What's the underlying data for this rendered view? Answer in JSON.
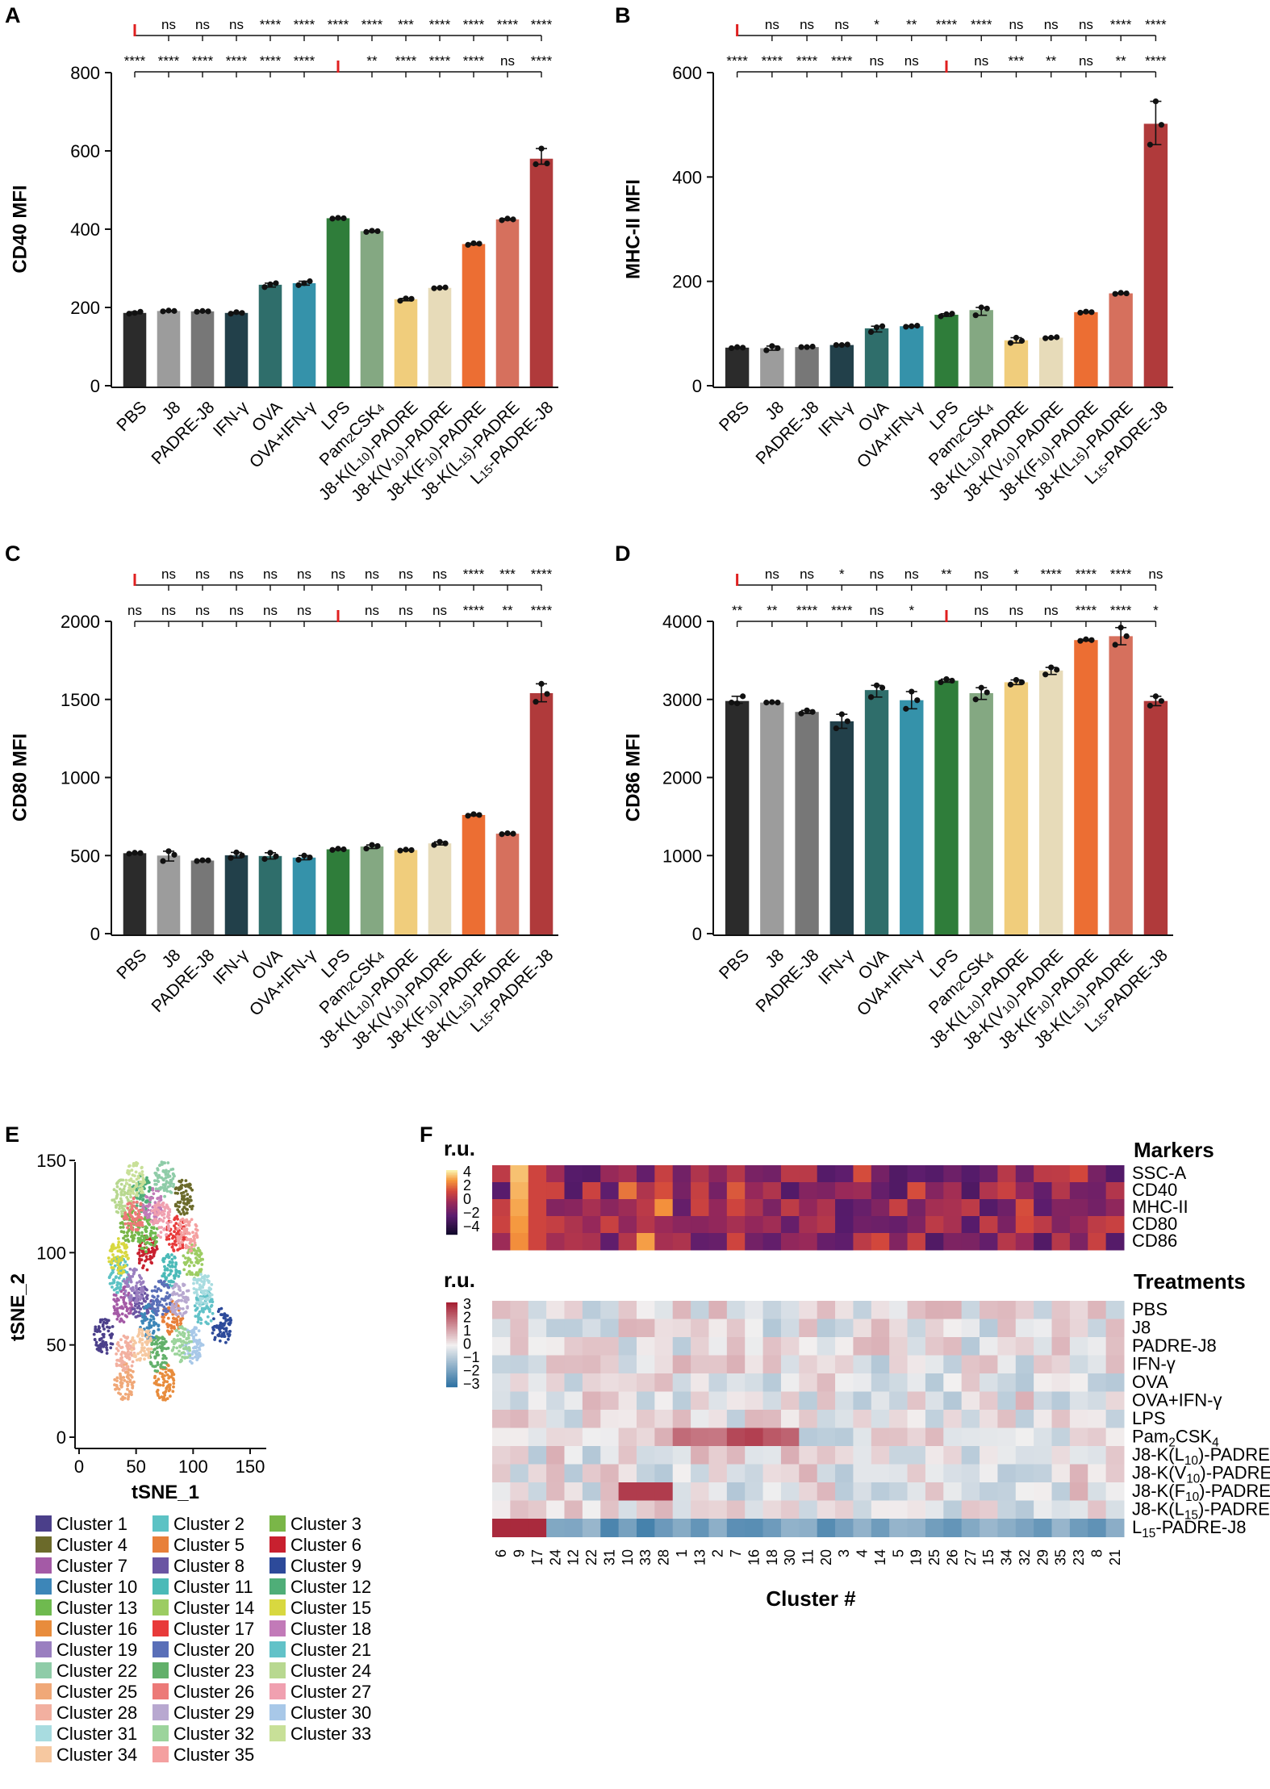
{
  "categories": [
    "PBS",
    "J8",
    "PADRE-J8",
    "IFN-γ",
    "OVA",
    "OVA+IFN-γ",
    "LPS",
    "Pam2CSK4",
    "J8-K(L10)-PADRE",
    "J8-K(V10)-PADRE",
    "J8-K(F10)-PADRE",
    "J8-K(L15)-PADRE",
    "L15-PADRE-J8"
  ],
  "bar_colors": [
    "#2b2b2b",
    "#9c9c9c",
    "#777777",
    "#22404a",
    "#2f6e6b",
    "#3592aa",
    "#2f7d3a",
    "#84a882",
    "#f0cd7c",
    "#e7dbb9",
    "#ec6e33",
    "#d6705d",
    "#b03a3b"
  ],
  "chart_data": [
    {
      "type": "bar",
      "panel": "A",
      "ylabel": "CD40 MFI",
      "ylim": [
        0,
        800
      ],
      "yticks": [
        0,
        200,
        400,
        600,
        800
      ],
      "values": [
        186,
        191,
        190,
        186,
        258,
        262,
        428,
        395,
        221,
        250,
        362,
        425,
        580
      ],
      "points": [
        [
          184,
          186,
          189
        ],
        [
          190,
          192,
          191
        ],
        [
          189,
          191,
          190
        ],
        [
          184,
          188,
          186
        ],
        [
          252,
          259,
          262
        ],
        [
          257,
          262,
          267
        ],
        [
          427,
          429,
          428
        ],
        [
          393,
          396,
          395
        ],
        [
          217,
          223,
          222
        ],
        [
          249,
          250,
          251
        ],
        [
          360,
          364,
          363
        ],
        [
          423,
          427,
          425
        ],
        [
          566,
          606,
          568
        ]
      ],
      "sig_row1": [
        "ref",
        "ns",
        "ns",
        "ns",
        "****",
        "****",
        "****",
        "****",
        "***",
        "****",
        "****",
        "****",
        "****"
      ],
      "sig_row2": [
        "****",
        "****",
        "****",
        "****",
        "****",
        "****",
        "ref",
        "**",
        "****",
        "****",
        "****",
        "ns",
        "****"
      ]
    },
    {
      "type": "bar",
      "panel": "B",
      "ylabel": "MHC-II MFI",
      "ylim": [
        0,
        600
      ],
      "yticks": [
        0,
        200,
        400,
        600
      ],
      "values": [
        73,
        72,
        74,
        78,
        110,
        114,
        136,
        145,
        87,
        92,
        141,
        177,
        502
      ],
      "points": [
        [
          72,
          74,
          73
        ],
        [
          68,
          76,
          72
        ],
        [
          74,
          74,
          75
        ],
        [
          78,
          78,
          79
        ],
        [
          103,
          112,
          114
        ],
        [
          113,
          114,
          115
        ],
        [
          133,
          137,
          138
        ],
        [
          135,
          150,
          148
        ],
        [
          82,
          92,
          86
        ],
        [
          91,
          92,
          93
        ],
        [
          140,
          142,
          141
        ],
        [
          176,
          178,
          177
        ],
        [
          462,
          545,
          500
        ]
      ],
      "sig_row1": [
        "ref",
        "ns",
        "ns",
        "ns",
        "*",
        "**",
        "****",
        "****",
        "ns",
        "ns",
        "ns",
        "****",
        "****"
      ],
      "sig_row2": [
        "****",
        "****",
        "****",
        "****",
        "ns",
        "ns",
        "ref",
        "ns",
        "***",
        "**",
        "ns",
        "**",
        "****"
      ]
    },
    {
      "type": "bar",
      "panel": "C",
      "ylabel": "CD80 MFI",
      "ylim": [
        0,
        2000
      ],
      "yticks": [
        0,
        500,
        1000,
        1500,
        2000
      ],
      "values": [
        515,
        500,
        468,
        502,
        497,
        487,
        540,
        558,
        535,
        578,
        760,
        640,
        1540
      ],
      "points": [
        [
          512,
          518,
          516
        ],
        [
          465,
          528,
          505
        ],
        [
          465,
          470,
          469
        ],
        [
          485,
          520,
          501
        ],
        [
          478,
          518,
          495
        ],
        [
          473,
          500,
          488
        ],
        [
          536,
          544,
          540
        ],
        [
          545,
          568,
          561
        ],
        [
          532,
          538,
          535
        ],
        [
          568,
          588,
          578
        ],
        [
          755,
          765,
          760
        ],
        [
          637,
          643,
          640
        ],
        [
          1485,
          1600,
          1535
        ]
      ],
      "sig_row1": [
        "ref",
        "ns",
        "ns",
        "ns",
        "ns",
        "ns",
        "ns",
        "ns",
        "ns",
        "ns",
        "****",
        "***",
        "****"
      ],
      "sig_row2": [
        "ns",
        "ns",
        "ns",
        "ns",
        "ns",
        "ns",
        "ref",
        "ns",
        "ns",
        "ns",
        "****",
        "**",
        "****"
      ]
    },
    {
      "type": "bar",
      "panel": "D",
      "ylabel": "CD86 MFI",
      "ylim": [
        0,
        4000
      ],
      "yticks": [
        0,
        1000,
        2000,
        3000,
        4000
      ],
      "values": [
        2980,
        2960,
        2840,
        2720,
        3120,
        2990,
        3240,
        3080,
        3220,
        3370,
        3760,
        3810,
        2980
      ],
      "points": [
        [
          2960,
          2950,
          3040
        ],
        [
          2960,
          2965,
          2960
        ],
        [
          2820,
          2860,
          2840
        ],
        [
          2630,
          2810,
          2720
        ],
        [
          3030,
          3180,
          3150
        ],
        [
          2880,
          3100,
          2990
        ],
        [
          3220,
          3260,
          3240
        ],
        [
          3000,
          3150,
          3090
        ],
        [
          3190,
          3250,
          3220
        ],
        [
          3320,
          3410,
          3380
        ],
        [
          3750,
          3770,
          3760
        ],
        [
          3700,
          3920,
          3810
        ],
        [
          2920,
          3040,
          2980
        ]
      ],
      "sig_row1": [
        "ref",
        "ns",
        "ns",
        "*",
        "ns",
        "ns",
        "**",
        "ns",
        "*",
        "****",
        "****",
        "****",
        "ns"
      ],
      "sig_row2": [
        "**",
        "**",
        "****",
        "****",
        "ns",
        "*",
        "ref",
        "ns",
        "ns",
        "ns",
        "****",
        "****",
        "*"
      ]
    }
  ],
  "panel_labels": [
    "A",
    "B",
    "C",
    "D",
    "E",
    "F"
  ],
  "tsne": {
    "xlabel": "tSNE_1",
    "ylabel": "tSNE_2",
    "xticks": [
      0,
      50,
      100,
      150
    ],
    "yticks": [
      0,
      50,
      100,
      150
    ],
    "clusters": [
      "Cluster 1",
      "Cluster 2",
      "Cluster 3",
      "Cluster 4",
      "Cluster 5",
      "Cluster 6",
      "Cluster 7",
      "Cluster 8",
      "Cluster 9",
      "Cluster 10",
      "Cluster 11",
      "Cluster 12",
      "Cluster 13",
      "Cluster 14",
      "Cluster 15",
      "Cluster 16",
      "Cluster 17",
      "Cluster 18",
      "Cluster 19",
      "Cluster 20",
      "Cluster 21",
      "Cluster 22",
      "Cluster 23",
      "Cluster 24",
      "Cluster 25",
      "Cluster 26",
      "Cluster 27",
      "Cluster 28",
      "Cluster 29",
      "Cluster 30",
      "Cluster 31",
      "Cluster 32",
      "Cluster 33",
      "Cluster 34",
      "Cluster 35"
    ],
    "cluster_colors": [
      "#4b3f8a",
      "#5cc2c4",
      "#7ab648",
      "#6b6a2a",
      "#e8803a",
      "#c8202f",
      "#a45aa6",
      "#6a55a3",
      "#2d4a9a",
      "#3d86b8",
      "#4bbab8",
      "#4fae78",
      "#6fba4f",
      "#9ccc62",
      "#d8d840",
      "#e88c3c",
      "#e83a3a",
      "#c27ab8",
      "#9a7fc0",
      "#5a6fb8",
      "#62c2c8",
      "#8fcca8",
      "#62b06a",
      "#b8d890",
      "#f0a878",
      "#ec7a78",
      "#f0a0b0",
      "#f2b0a0",
      "#b8a8d0",
      "#a8c8e8",
      "#a8dce0",
      "#9cd49c",
      "#c8e098",
      "#f6c8a0",
      "#f4a0a0"
    ],
    "centers": [
      [
        22,
        55
      ],
      [
        35,
        88
      ],
      [
        45,
        115
      ],
      [
        92,
        130
      ],
      [
        82,
        65
      ],
      [
        60,
        100
      ],
      [
        38,
        72
      ],
      [
        55,
        72
      ],
      [
        125,
        60
      ],
      [
        62,
        62
      ],
      [
        80,
        90
      ],
      [
        55,
        132
      ],
      [
        60,
        110
      ],
      [
        100,
        95
      ],
      [
        35,
        98
      ],
      [
        75,
        30
      ],
      [
        85,
        110
      ],
      [
        65,
        125
      ],
      [
        48,
        82
      ],
      [
        72,
        75
      ],
      [
        110,
        70
      ],
      [
        75,
        140
      ],
      [
        70,
        45
      ],
      [
        38,
        130
      ],
      [
        40,
        30
      ],
      [
        48,
        120
      ],
      [
        72,
        118
      ],
      [
        40,
        45
      ],
      [
        88,
        75
      ],
      [
        100,
        50
      ],
      [
        108,
        80
      ],
      [
        90,
        50
      ],
      [
        50,
        140
      ],
      [
        55,
        50
      ],
      [
        95,
        110
      ]
    ]
  },
  "heatmap": {
    "markers_title": "Markers",
    "treatments_title": "Treatments",
    "xlabel": "Cluster #",
    "ru_label": "r.u.",
    "markers_scale_ticks": [
      "4",
      "2",
      "0",
      "−2",
      "−4"
    ],
    "treat_scale_ticks": [
      "3",
      "2",
      "1",
      "0",
      "−1",
      "−2",
      "−3"
    ],
    "cluster_order": [
      "6",
      "9",
      "17",
      "24",
      "12",
      "22",
      "31",
      "10",
      "33",
      "28",
      "1",
      "13",
      "2",
      "7",
      "16",
      "18",
      "30",
      "11",
      "20",
      "3",
      "4",
      "14",
      "5",
      "19",
      "25",
      "26",
      "27",
      "15",
      "34",
      "32",
      "29",
      "35",
      "23",
      "8",
      "21"
    ],
    "marker_rows": [
      "SSC-A",
      "CD40",
      "MHC-II",
      "CD80",
      "CD86"
    ],
    "treatment_rows": [
      "PBS",
      "J8",
      "PADRE-J8",
      "IFN-γ",
      "OVA",
      "OVA+IFN-γ",
      "LPS",
      "Pam2CSK4",
      "J8-K(L10)-PADRE",
      "J8-K(V10)-PADRE",
      "J8-K(F10)-PADRE",
      "J8-K(L15)-PADRE",
      "L15-PADRE-J8"
    ]
  }
}
